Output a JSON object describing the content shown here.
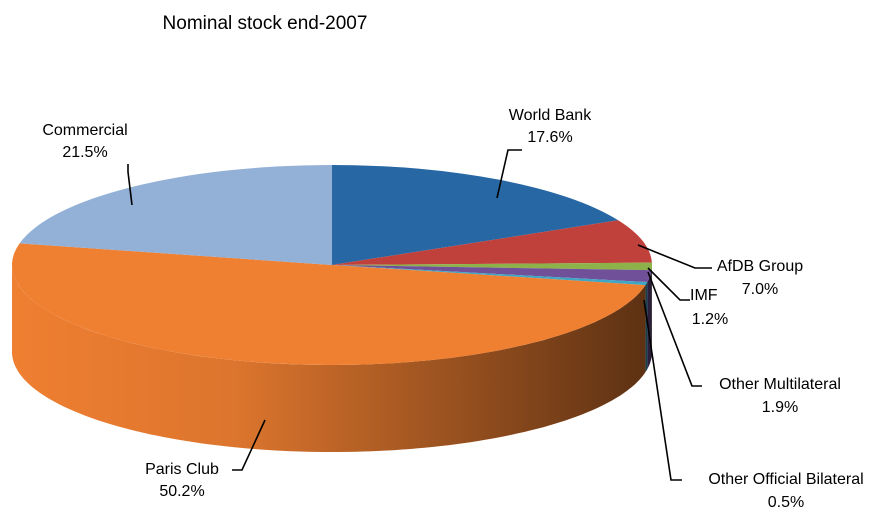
{
  "chart_data": {
    "type": "pie3d",
    "title": "Nominal stock end-2007",
    "categories": [
      "World Bank",
      "AfDB Group",
      "IMF",
      "Other Multilateral",
      "Other Official Bilateral",
      "Paris Club",
      "Commercial"
    ],
    "values": [
      17.6,
      7.0,
      1.2,
      1.9,
      0.5,
      50.2,
      21.5
    ],
    "value_labels": [
      "17.6%",
      "7.0%",
      "1.2%",
      "1.9%",
      "0.5%",
      "50.2%",
      "21.5%"
    ],
    "colors": [
      "#2767a3",
      "#c0403b",
      "#8db24a",
      "#71509a",
      "#3fa6c4",
      "#ef7f31",
      "#93b0d6"
    ]
  }
}
